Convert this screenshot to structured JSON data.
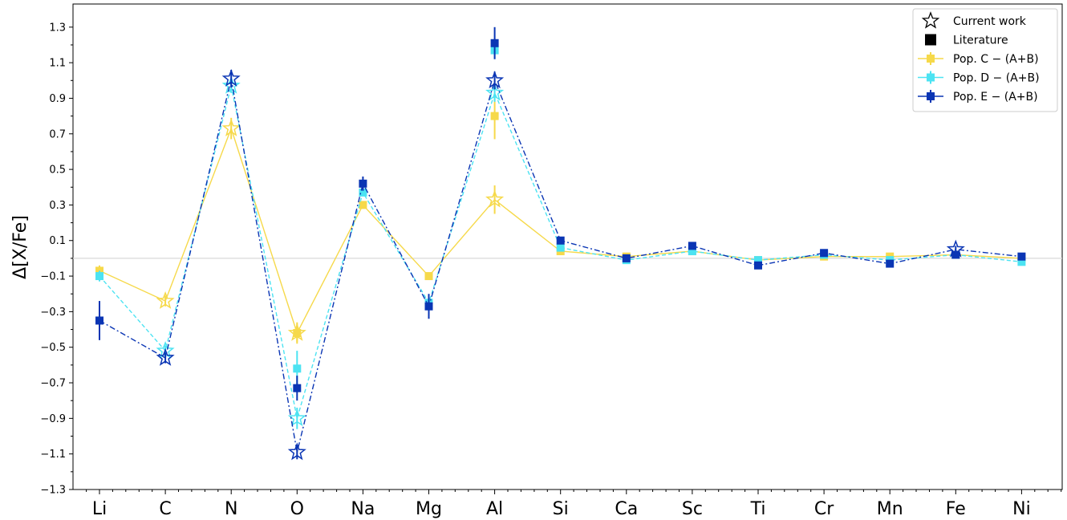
{
  "chart_data": {
    "type": "line",
    "title": "",
    "xlabel": "",
    "ylabel": "Δ[X/Fe]",
    "categories": [
      "Li",
      "C",
      "N",
      "O",
      "Na",
      "Mg",
      "Al",
      "Si",
      "Ca",
      "Sc",
      "Ti",
      "Cr",
      "Mn",
      "Fe",
      "Ni"
    ],
    "ylim": [
      -1.3,
      1.43
    ],
    "yticks": [
      -1.3,
      -1.1,
      -0.9,
      -0.7,
      -0.5,
      -0.3,
      -0.1,
      0.1,
      0.3,
      0.5,
      0.7,
      0.9,
      1.1,
      1.3
    ],
    "ytick_labels": [
      "−1.3",
      "−1.1",
      "−0.9",
      "−0.7",
      "−0.5",
      "−0.3",
      "−0.1",
      "0.1",
      "0.3",
      "0.5",
      "0.7",
      "0.9",
      "1.1",
      "1.3"
    ],
    "zero_line": 0.0,
    "grid": false,
    "legend_position": "top-right",
    "legend": [
      {
        "label": "Current work",
        "marker": "star-open",
        "color": "#000000"
      },
      {
        "label": "Literature",
        "marker": "square",
        "color": "#000000"
      },
      {
        "label": "Pop. C − (A+B)",
        "marker": "line-square",
        "color": "#f6d94a"
      },
      {
        "label": "Pop. D − (A+B)",
        "marker": "line-square",
        "color": "#4ce3f2"
      },
      {
        "label": "Pop. E − (A+B)",
        "marker": "line-square",
        "color": "#0a35b4"
      }
    ],
    "series": [
      {
        "name": "Pop. C − (A+B)",
        "color": "#f6d94a",
        "dash": "solid",
        "values": [
          -0.07,
          -0.24,
          0.73,
          -0.42,
          0.3,
          -0.1,
          0.33,
          0.04,
          0.01,
          0.04,
          -0.01,
          0.01,
          0.01,
          0.02,
          0.0
        ],
        "errors": [
          0.03,
          0.03,
          0.06,
          0.06,
          0.02,
          0.02,
          0.08,
          0.01,
          0.01,
          0.01,
          0.01,
          0.01,
          0.01,
          0.01,
          0.01
        ],
        "markers": [
          "square",
          "star",
          "star",
          "star",
          "square",
          "square",
          "star",
          "square",
          "square",
          "square",
          "square",
          "square",
          "square",
          "square",
          "square"
        ],
        "literature": [
          {
            "category": "O",
            "value": -0.42,
            "error": 0.05
          },
          {
            "category": "Al",
            "value": 0.8,
            "error": 0.13
          }
        ]
      },
      {
        "name": "Pop. D − (A+B)",
        "color": "#4ce3f2",
        "dash": "dashed",
        "values": [
          -0.1,
          -0.52,
          0.97,
          -0.9,
          0.37,
          -0.25,
          0.93,
          0.06,
          -0.01,
          0.04,
          -0.01,
          0.02,
          -0.01,
          0.02,
          -0.02
        ],
        "errors": [
          0.03,
          0.03,
          0.04,
          0.06,
          0.02,
          0.03,
          0.05,
          0.01,
          0.01,
          0.01,
          0.01,
          0.01,
          0.01,
          0.01,
          0.01
        ],
        "markers": [
          "square",
          "star",
          "star",
          "star",
          "square",
          "square",
          "star",
          "square",
          "square",
          "square",
          "square",
          "square",
          "square",
          "square",
          "square"
        ],
        "literature": [
          {
            "category": "O",
            "value": -0.62,
            "error": 0.1
          },
          {
            "category": "Al",
            "value": 1.17,
            "error": 0.05
          }
        ]
      },
      {
        "name": "Pop. E − (A+B)",
        "color": "#0a35b4",
        "dash": "dashdot",
        "values": [
          -0.35,
          -0.56,
          1.01,
          -1.09,
          0.42,
          -0.27,
          1.0,
          0.1,
          0.0,
          0.07,
          -0.04,
          0.03,
          -0.03,
          0.05,
          0.01
        ],
        "errors": [
          0.11,
          0.03,
          0.05,
          0.04,
          0.04,
          0.07,
          0.05,
          0.01,
          0.01,
          0.01,
          0.01,
          0.01,
          0.01,
          0.02,
          0.02
        ],
        "markers": [
          "square",
          "star",
          "star",
          "star",
          "square",
          "square",
          "star",
          "square",
          "square",
          "square",
          "square",
          "square",
          "square",
          "star",
          "square"
        ],
        "literature": [
          {
            "category": "O",
            "value": -0.73,
            "error": 0.07
          },
          {
            "category": "Al",
            "value": 1.21,
            "error": 0.09
          },
          {
            "category": "Fe",
            "value": 0.02,
            "error": 0.01
          }
        ]
      }
    ]
  }
}
